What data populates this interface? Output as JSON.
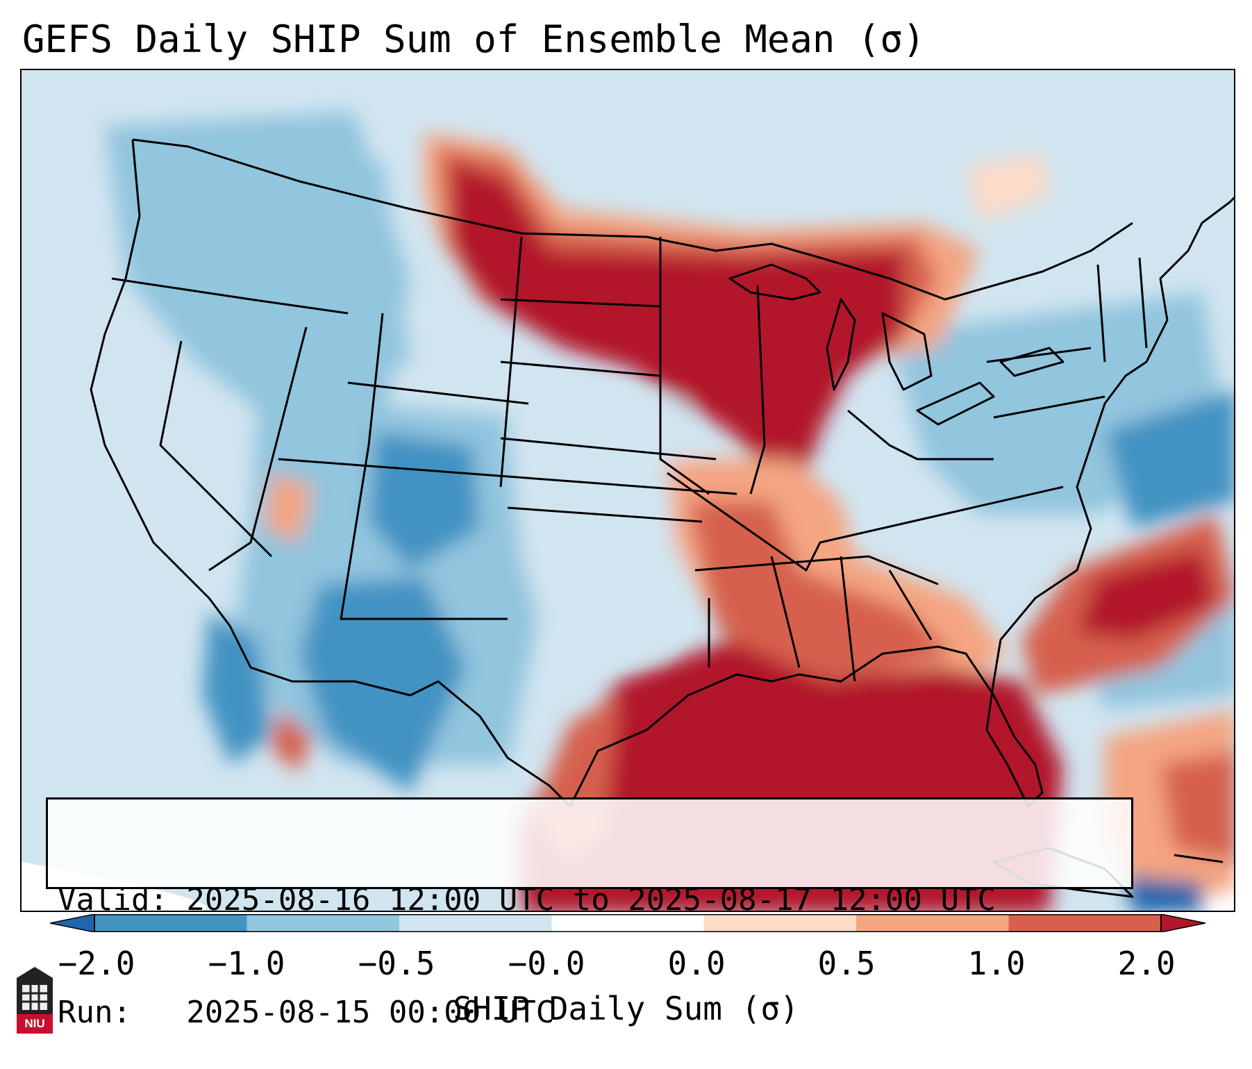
{
  "title": "GEFS Daily SHIP Sum of Ensemble Mean (σ)",
  "info": {
    "valid_line": "Valid: 2025-08-16 12:00 UTC to 2025-08-17 12:00 UTC",
    "run_line": "Run:   2025-08-15 00:00 UTC"
  },
  "colorbar": {
    "label": "SHIP Daily Sum (σ)",
    "tick_labels": [
      "−2.0",
      "−1.0",
      "−0.5",
      "−0.0",
      "0.0",
      "0.5",
      "1.0",
      "2.0"
    ],
    "colors": [
      "#2166ac",
      "#4393c3",
      "#92c5de",
      "#d1e5f0",
      "#ffffff",
      "#fddbc7",
      "#f4a582",
      "#d6604d",
      "#b2182b"
    ],
    "extend": "both"
  },
  "logo": {
    "text": "NIU",
    "color": "#c8102e"
  },
  "map": {
    "region": "Contiguous United States, Gulf of Mexico and western Atlantic",
    "ocean_base_color": "#d1e5f0",
    "high_ship_regions": [
      "Northern Plains",
      "Upper Midwest",
      "Great Lakes",
      "Lower Mississippi Valley",
      "Gulf Coast",
      "Gulf of Mexico",
      "Western Atlantic off Carolinas"
    ],
    "low_ship_regions": [
      "Southwest",
      "Rockies",
      "Great Basin",
      "Northeast"
    ]
  }
}
